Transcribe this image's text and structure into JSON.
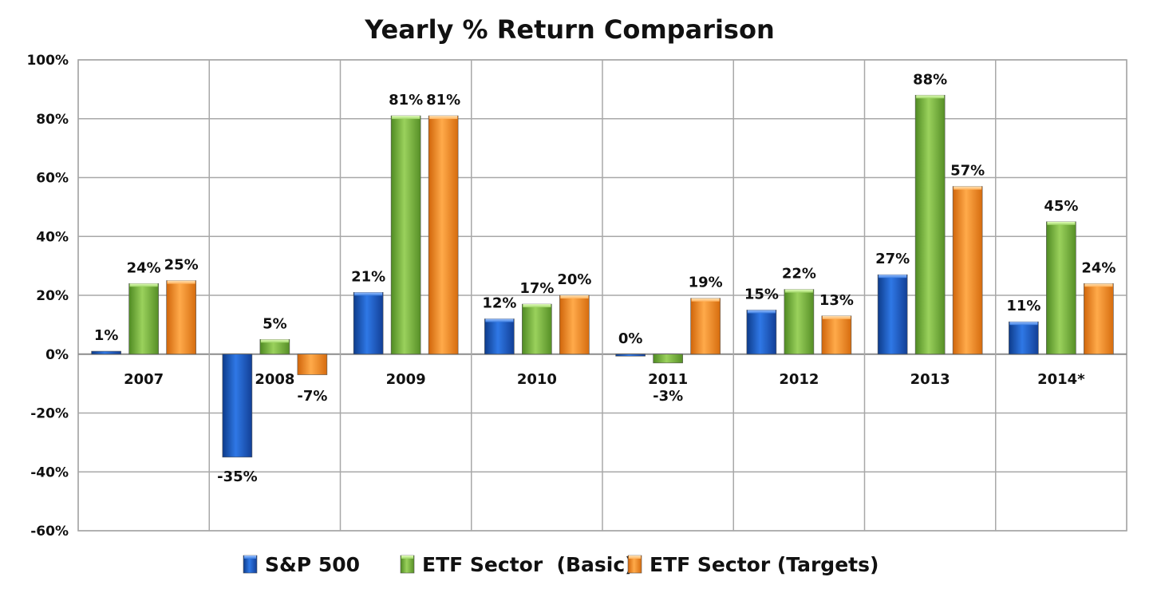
{
  "chart_data": {
    "type": "bar",
    "title": "Yearly % Return Comparison",
    "xlabel": "",
    "ylabel": "",
    "ylim": [
      -60,
      100
    ],
    "ytick_step": 20,
    "ytick_labels": [
      "100%",
      "80%",
      "60%",
      "40%",
      "20%",
      "0%",
      "-20%",
      "-40%",
      "-60%"
    ],
    "grid": true,
    "legend_position": "bottom",
    "categories": [
      "2007",
      "2008",
      "2009",
      "2010",
      "2011",
      "2012",
      "2013",
      "2014*"
    ],
    "series": [
      {
        "name": "S&P 500",
        "values": [
          1,
          -35,
          21,
          12,
          0,
          15,
          27,
          11
        ],
        "labels": [
          "1%",
          "-35%",
          "21%",
          "12%",
          "0%",
          "15%",
          "27%",
          "11%"
        ],
        "color": "#1f5fc8"
      },
      {
        "name": "ETF Sector  (Basic)",
        "values": [
          24,
          5,
          81,
          17,
          -3,
          22,
          88,
          45
        ],
        "labels": [
          "24%",
          "5%",
          "81%",
          "17%",
          "-3%",
          "22%",
          "88%",
          "45%"
        ],
        "color": "#7ab648"
      },
      {
        "name": "ETF Sector (Targets)",
        "values": [
          25,
          -7,
          81,
          20,
          19,
          13,
          57,
          24
        ],
        "labels": [
          "25%",
          "-7%",
          "81%",
          "20%",
          "19%",
          "13%",
          "57%",
          "24%"
        ],
        "color": "#f28a1e"
      }
    ]
  }
}
